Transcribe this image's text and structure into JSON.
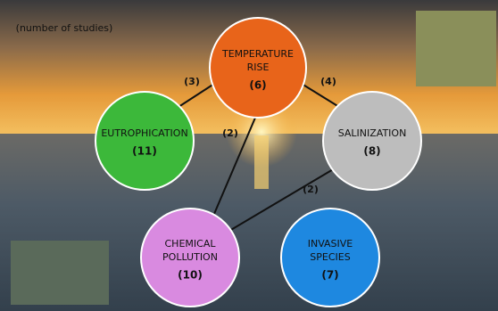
{
  "note": "(number of studies)",
  "nodes": [
    {
      "label_lines": [
        "TEMPERATURE",
        "RISE"
      ],
      "count": "(6)"
    },
    {
      "label_lines": [
        "EUTROPHICATION"
      ],
      "count": "(11)"
    },
    {
      "label_lines": [
        "SALINIZATION"
      ],
      "count": "(8)"
    },
    {
      "label_lines": [
        "CHEMICAL",
        "POLLUTION"
      ],
      "count": "(10)"
    },
    {
      "label_lines": [
        "INVASIVE",
        "SPECIES"
      ],
      "count": "(7)"
    }
  ],
  "edges": [
    {
      "label": "(3)"
    },
    {
      "label": "(4)"
    },
    {
      "label": "(2)"
    },
    {
      "label": "(2)"
    }
  ]
}
